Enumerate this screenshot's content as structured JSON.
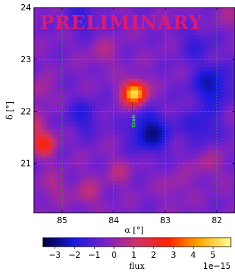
{
  "chart_data": {
    "type": "heatmap",
    "watermark": "PRELIMINARY",
    "xlabel": "α [°]",
    "ylabel": "δ [°]",
    "x_inverted": true,
    "xlim": [
      85.55,
      81.65
    ],
    "ylim": [
      20.05,
      24.0
    ],
    "x_ticks": [
      85,
      84,
      83,
      82
    ],
    "y_ticks": [
      21,
      22,
      23,
      24
    ],
    "x_tick_labels": [
      "85",
      "84",
      "83",
      "82"
    ],
    "y_tick_labels": [
      "21",
      "22",
      "23",
      "24"
    ],
    "grid": true,
    "colorbar": {
      "label": "flux",
      "orientation": "horizontal",
      "range": [
        -3.6,
        5.9
      ],
      "ticks": [
        -3,
        -2,
        -1,
        0,
        1,
        2,
        3,
        4,
        5
      ],
      "tick_labels": [
        "−3",
        "−2",
        "−1",
        "0",
        "1",
        "2",
        "3",
        "4",
        "5"
      ],
      "scale_label": "1e−15",
      "colors": [
        "#00003a",
        "#1a1ae0",
        "#7a22c8",
        "#d0306a",
        "#ff2200",
        "#ffaa00",
        "#ffff99"
      ]
    },
    "sources": [
      {
        "name": "Crab",
        "ra": 83.63,
        "dec": 22.01
      }
    ],
    "hotspots": [
      {
        "ra": 83.6,
        "dec": 22.35,
        "flux": 5.8,
        "sigma": 0.16
      },
      {
        "ra": 85.35,
        "dec": 21.35,
        "flux": 2.6,
        "sigma": 0.16
      },
      {
        "ra": 85.55,
        "dec": 21.7,
        "flux": 1.4,
        "sigma": 0.18
      },
      {
        "ra": 84.5,
        "dec": 20.45,
        "flux": 1.0,
        "sigma": 0.2
      },
      {
        "ra": 85.2,
        "dec": 20.55,
        "flux": 0.9,
        "sigma": 0.18
      },
      {
        "ra": 83.9,
        "dec": 20.85,
        "flux": 0.9,
        "sigma": 0.18
      },
      {
        "ra": 84.2,
        "dec": 23.15,
        "flux": 0.8,
        "sigma": 0.2
      },
      {
        "ra": 82.2,
        "dec": 21.0,
        "flux": 0.8,
        "sigma": 0.2
      },
      {
        "ra": 82.8,
        "dec": 20.55,
        "flux": 0.6,
        "sigma": 0.2
      },
      {
        "ra": 85.45,
        "dec": 22.4,
        "flux": 1.0,
        "sigma": 0.16
      },
      {
        "ra": 81.8,
        "dec": 23.9,
        "flux": 0.6,
        "sigma": 0.2
      }
    ],
    "coldspots": [
      {
        "ra": 83.3,
        "dec": 21.6,
        "flux": -2.4,
        "sigma": 0.28
      },
      {
        "ra": 82.1,
        "dec": 22.5,
        "flux": -2.0,
        "sigma": 0.28
      },
      {
        "ra": 82.3,
        "dec": 21.7,
        "flux": -1.4,
        "sigma": 0.25
      },
      {
        "ra": 84.6,
        "dec": 21.9,
        "flux": -1.3,
        "sigma": 0.25
      },
      {
        "ra": 84.6,
        "dec": 23.8,
        "flux": -1.0,
        "sigma": 0.25
      },
      {
        "ra": 82.4,
        "dec": 23.3,
        "flux": -1.0,
        "sigma": 0.25
      }
    ]
  }
}
